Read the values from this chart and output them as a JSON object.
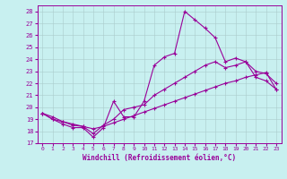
{
  "xlabel": "Windchill (Refroidissement éolien,°C)",
  "bg_color": "#c8f0f0",
  "grid_color": "#aacccc",
  "line_color": "#990099",
  "xlim": [
    -0.5,
    23.5
  ],
  "ylim": [
    17,
    28.5
  ],
  "yticks": [
    17,
    18,
    19,
    20,
    21,
    22,
    23,
    24,
    25,
    26,
    27,
    28
  ],
  "xticks": [
    0,
    1,
    2,
    3,
    4,
    5,
    6,
    7,
    8,
    9,
    10,
    11,
    12,
    13,
    14,
    15,
    16,
    17,
    18,
    19,
    20,
    21,
    22,
    23
  ],
  "series": [
    [
      19.5,
      19.0,
      18.6,
      18.3,
      18.3,
      17.5,
      18.3,
      20.5,
      19.2,
      19.2,
      20.5,
      23.5,
      24.2,
      24.5,
      28.0,
      27.3,
      26.6,
      25.8,
      23.8,
      24.1,
      23.8,
      22.5,
      22.2,
      21.5
    ],
    [
      19.5,
      19.2,
      18.8,
      18.5,
      18.4,
      17.8,
      18.5,
      19.0,
      19.8,
      20.0,
      20.2,
      21.0,
      21.5,
      22.0,
      22.5,
      23.0,
      23.5,
      23.8,
      23.3,
      23.5,
      23.8,
      23.0,
      22.8,
      22.0
    ],
    [
      19.5,
      19.0,
      18.8,
      18.6,
      18.4,
      18.2,
      18.4,
      18.7,
      19.0,
      19.3,
      19.6,
      19.9,
      20.2,
      20.5,
      20.8,
      21.1,
      21.4,
      21.7,
      22.0,
      22.2,
      22.5,
      22.7,
      22.9,
      21.5
    ]
  ]
}
